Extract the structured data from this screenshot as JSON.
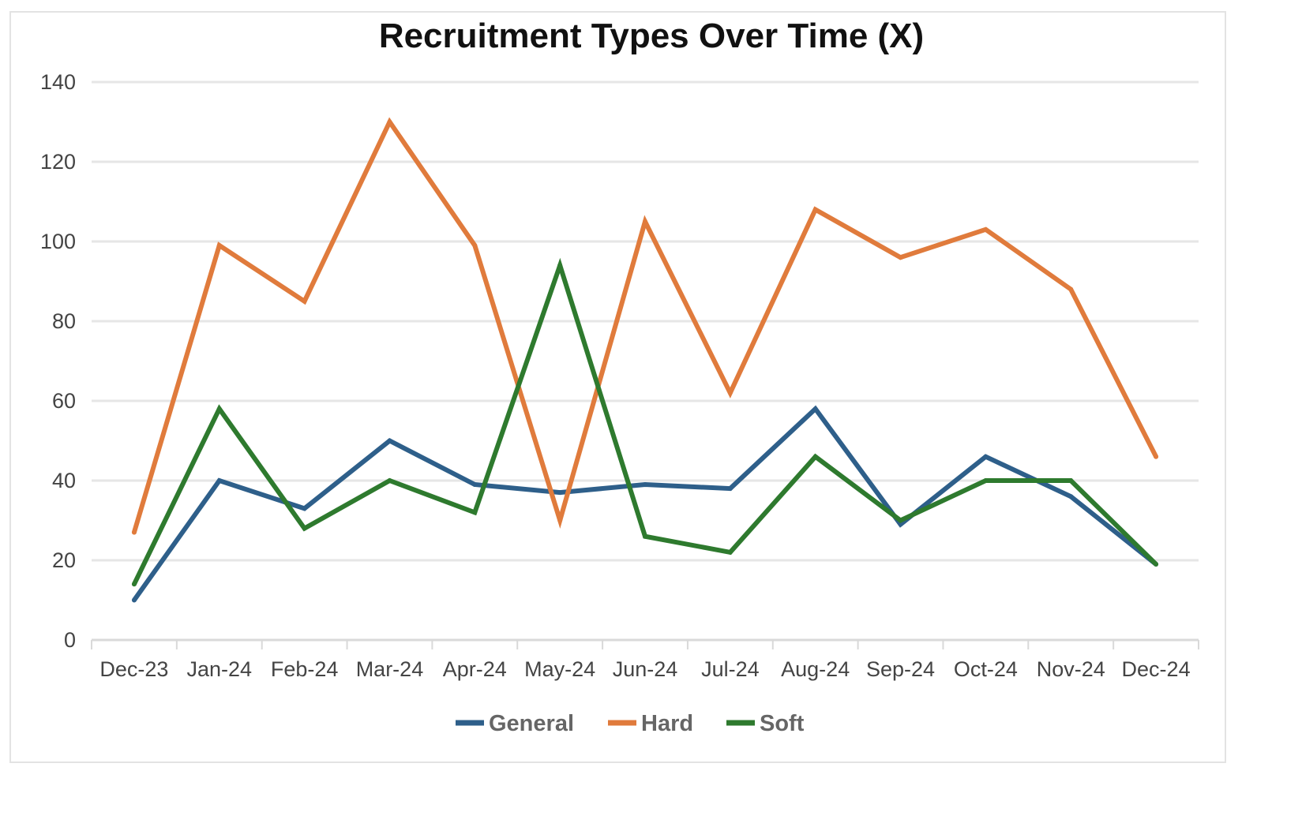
{
  "chart_data": {
    "type": "line",
    "title": "Recruitment Types Over Time (X)",
    "xlabel": "",
    "ylabel": "",
    "categories": [
      "Dec-23",
      "Jan-24",
      "Feb-24",
      "Mar-24",
      "Apr-24",
      "May-24",
      "Jun-24",
      "Jul-24",
      "Aug-24",
      "Sep-24",
      "Oct-24",
      "Nov-24",
      "Dec-24"
    ],
    "ylim": [
      0,
      140
    ],
    "yticks": [
      0,
      20,
      40,
      60,
      80,
      100,
      120,
      140
    ],
    "grid": true,
    "legend_position": "bottom",
    "series": [
      {
        "name": "General",
        "color": "#2e5f8a",
        "values": [
          10,
          40,
          33,
          50,
          39,
          37,
          39,
          38,
          58,
          29,
          46,
          36,
          19
        ]
      },
      {
        "name": "Hard",
        "color": "#e07b3c",
        "values": [
          27,
          99,
          85,
          130,
          99,
          30,
          105,
          62,
          108,
          96,
          103,
          88,
          46
        ]
      },
      {
        "name": "Soft",
        "color": "#2e7a2e",
        "values": [
          14,
          58,
          28,
          40,
          32,
          94,
          26,
          22,
          46,
          30,
          40,
          40,
          19
        ]
      }
    ]
  }
}
